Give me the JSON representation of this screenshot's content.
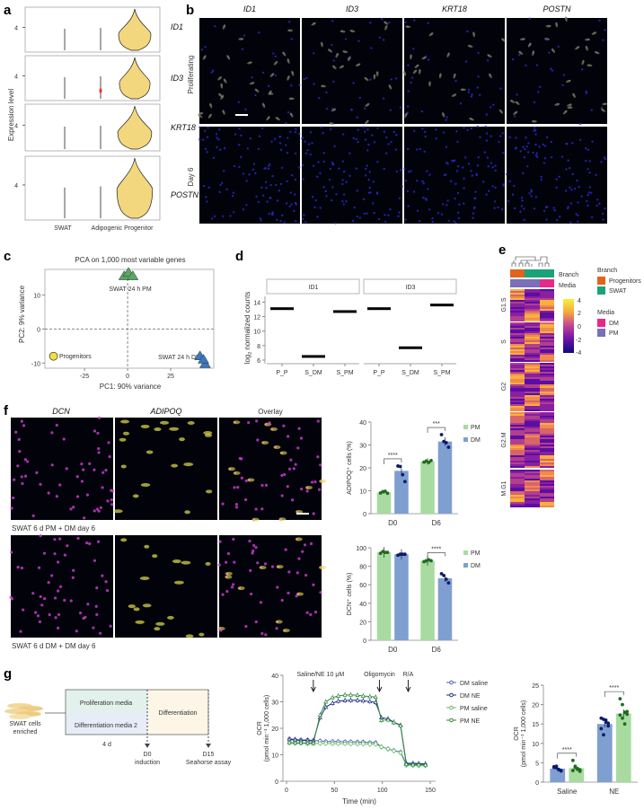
{
  "panels": {
    "a": "a",
    "b": "b",
    "c": "c",
    "d": "d",
    "e": "e",
    "f": "f",
    "g": "g"
  },
  "colors": {
    "violin": "#f2d77e",
    "pm_green": "#a8dba0",
    "dm_blue": "#7f9fd1",
    "pm_dot": "#1e6b1e",
    "dm_dot": "#0b1a6e",
    "progenitors": "#e0641c",
    "swat": "#1aa37a",
    "media_dm": "#e8288a",
    "media_pm": "#7a6fb8",
    "dcn": "#d23cd8",
    "adipoq": "#e6e04a"
  },
  "panel_a": {
    "ylabel": "Expression level",
    "ytick": "4",
    "genes": [
      "ID1",
      "ID3",
      "KRT18",
      "POSTN"
    ],
    "xlabels": [
      "SWAT",
      "Adipogenic Progenitor"
    ]
  },
  "panel_b": {
    "columns": [
      "ID1",
      "ID3",
      "KRT18",
      "POSTN"
    ],
    "rows": [
      "Proliferating",
      "Day 6"
    ]
  },
  "panel_f_images": {
    "columns": [
      "DCN",
      "ADIPOQ",
      "Overlay"
    ],
    "captions": [
      "SWAT 6 d PM + DM day 6",
      "SWAT 6 d DM + DM day 6"
    ]
  },
  "panel_g_diagram": {
    "source": [
      "SWAT cells",
      "enriched"
    ],
    "media1": "Proliferation media",
    "media2": "Differentiation media 2",
    "diff": "Differentiation",
    "duration": "4 d",
    "d0": [
      "D0",
      "induction"
    ],
    "d15": [
      "D15",
      "Seahorse assay"
    ]
  },
  "chart_data": [
    {
      "id": "pca",
      "type": "scatter",
      "title": "PCA on 1,000 most variable genes",
      "xlabel": "PC1: 90% variance",
      "ylabel": "PC2: 9% variance",
      "xlim": [
        -48,
        50
      ],
      "ylim": [
        -11.5,
        17.5
      ],
      "xticks": [
        -25,
        0,
        25
      ],
      "yticks": [
        -10,
        0,
        10
      ],
      "groups": [
        {
          "name": "Progenitors",
          "shape": "circle",
          "color": "#f0e03c",
          "points": [
            [
              -43,
              -8
            ]
          ]
        },
        {
          "name": "SWAT 24 h PM",
          "shape": "triangle",
          "color": "#5aa85a",
          "points": [
            [
              -2,
              15.5
            ],
            [
              0.5,
              16.5
            ],
            [
              3,
              15.5
            ]
          ]
        },
        {
          "name": "SWAT 24 h DM",
          "shape": "triangle",
          "color": "#3d78b8",
          "points": [
            [
              42,
              -8
            ],
            [
              45,
              -10.3
            ],
            [
              44,
              -9
            ]
          ]
        }
      ]
    },
    {
      "id": "counts",
      "type": "box",
      "ylabel": "log2 normalized counts",
      "ylim": [
        5.5,
        14.8
      ],
      "yticks": [
        6,
        8,
        10,
        12,
        14
      ],
      "facets": [
        {
          "name": "ID1",
          "categories": [
            "P_P",
            "S_DM",
            "S_PM"
          ],
          "values": [
            13.1,
            6.5,
            12.7
          ]
        },
        {
          "name": "ID3",
          "categories": [
            "P_P",
            "S_DM",
            "S_PM"
          ],
          "values": [
            13.1,
            7.7,
            13.6
          ]
        }
      ]
    },
    {
      "id": "heatmap",
      "type": "heatmap",
      "row_groups": [
        "G1.S",
        "S",
        "G2",
        "G2.M",
        "M.G1"
      ],
      "annotation_rows": [
        "Branch",
        "Media"
      ],
      "legend": {
        "branch_title": "Branch",
        "branch": [
          "Progenitors",
          "SWAT"
        ],
        "media_title": "Media",
        "media": [
          "DM",
          "PM"
        ],
        "scale": [
          4,
          2,
          0,
          -2,
          -4
        ]
      }
    },
    {
      "id": "adipoq",
      "type": "bar",
      "ylabel": "ADIPOQ⁺ cells (%)",
      "categories": [
        "D0",
        "D6"
      ],
      "ylim": [
        0,
        40
      ],
      "yticks": [
        0,
        10,
        20,
        30,
        40
      ],
      "series": [
        {
          "name": "PM",
          "values": [
            9.3,
            22.8
          ],
          "points": [
            [
              9,
              9.6,
              9.8,
              8.9
            ],
            [
              22.5,
              23,
              22.4,
              23.2
            ]
          ]
        },
        {
          "name": "DM",
          "values": [
            18.7,
            31.5
          ],
          "points": [
            [
              20.8,
              20.6,
              17,
              14
            ],
            [
              34.5,
              31.5,
              31,
              29
            ]
          ]
        }
      ],
      "significance": [
        "****",
        "***"
      ]
    },
    {
      "id": "dcn",
      "type": "bar",
      "ylabel": "DCN⁺ cells (%)",
      "categories": [
        "D0",
        "D6"
      ],
      "ylim": [
        0,
        100
      ],
      "yticks": [
        0,
        20,
        40,
        60,
        80,
        100
      ],
      "series": [
        {
          "name": "PM",
          "values": [
            95,
            86
          ],
          "points": [
            [
              94,
              96,
              95,
              95
            ],
            [
              85,
              86,
              87,
              86
            ]
          ]
        },
        {
          "name": "DM",
          "values": [
            93,
            67
          ],
          "points": [
            [
              92,
              93,
              93,
              93
            ],
            [
              72,
              70,
              66,
              62
            ]
          ]
        }
      ],
      "significance": [
        "",
        "****"
      ]
    },
    {
      "id": "ocr",
      "type": "line",
      "xlabel": "Time (min)",
      "ylabel": "OCR",
      "ylabel2": "(pmol min⁻¹ 1,000 cells)",
      "xlim": [
        0,
        150
      ],
      "ylim": [
        0,
        40
      ],
      "xticks": [
        0,
        50,
        100,
        150
      ],
      "yticks": [
        0,
        10,
        20,
        30,
        40
      ],
      "annotations": [
        "Saline/NE 10 μM",
        "Oligomycin",
        "R/A"
      ],
      "annotation_times": [
        28,
        97,
        127
      ],
      "x": [
        3,
        9,
        15,
        22,
        28,
        35,
        41,
        48,
        54,
        61,
        67,
        74,
        80,
        87,
        93,
        99,
        106,
        112,
        119,
        125,
        132,
        138,
        145
      ],
      "series": [
        {
          "name": "DM saline",
          "color": "#4a5fb0",
          "marker": "circle",
          "values": [
            16,
            15.8,
            15.6,
            15.6,
            15.4,
            15.2,
            15,
            15,
            15,
            14.9,
            14.9,
            14.8,
            14.8,
            14.6,
            14.6,
            13,
            12.2,
            11.6,
            11,
            6.6,
            6.5,
            6.4,
            6.2
          ]
        },
        {
          "name": "DM NE",
          "color": "#1e2f80",
          "marker": "triangle",
          "values": [
            15.8,
            15.6,
            15.4,
            15.4,
            15.2,
            24,
            28,
            29.5,
            30.3,
            30.5,
            30.6,
            30.6,
            30.4,
            30.1,
            29.8,
            24,
            23.6,
            22.3,
            21.2,
            6.8,
            6.8,
            6.7,
            6.6
          ]
        },
        {
          "name": "PM saline",
          "color": "#6ab86a",
          "marker": "circle",
          "values": [
            14.5,
            14.4,
            14.4,
            14.3,
            14.3,
            14.3,
            14.3,
            14.2,
            14.2,
            14.2,
            14.1,
            14.1,
            14.1,
            14,
            14,
            13,
            12.2,
            11.5,
            10.8,
            6,
            6,
            5.9,
            5.9
          ]
        },
        {
          "name": "PM NE",
          "color": "#2f8a3a",
          "marker": "triangle",
          "values": [
            14.6,
            14.5,
            14.5,
            14.4,
            14.4,
            25,
            30,
            31.6,
            32.2,
            32.6,
            32.6,
            32.5,
            32.2,
            32,
            31.8,
            23,
            23.2,
            22.2,
            21,
            6.4,
            6.3,
            6.3,
            6.2
          ]
        }
      ]
    },
    {
      "id": "ocr_bar",
      "type": "bar",
      "ylabel": "OCR",
      "ylabel2": "(pmol min⁻¹ 1,000 cells)",
      "categories": [
        "Saline",
        "NE"
      ],
      "ylim": [
        0,
        25
      ],
      "yticks": [
        0,
        5,
        10,
        15,
        20,
        25
      ],
      "series": [
        {
          "name": "DM",
          "values": [
            3.5,
            15
          ],
          "points": [
            [
              4,
              3.7,
              3.2,
              3,
              3.8,
              4.1,
              3.3,
              2.9
            ],
            [
              16.5,
              16.2,
              15.5,
              14.5,
              13.8,
              12.2,
              16,
              15.2
            ]
          ]
        },
        {
          "name": "PM",
          "values": [
            3.6,
            17.7
          ],
          "points": [
            [
              5.6,
              4.1,
              3.5,
              3.2,
              3,
              3.8,
              3.3,
              2.8
            ],
            [
              21.5,
              20,
              18,
              17.5,
              17.3,
              16.5,
              15,
              18.2
            ]
          ]
        }
      ],
      "significance": [
        "****",
        "****"
      ]
    }
  ]
}
